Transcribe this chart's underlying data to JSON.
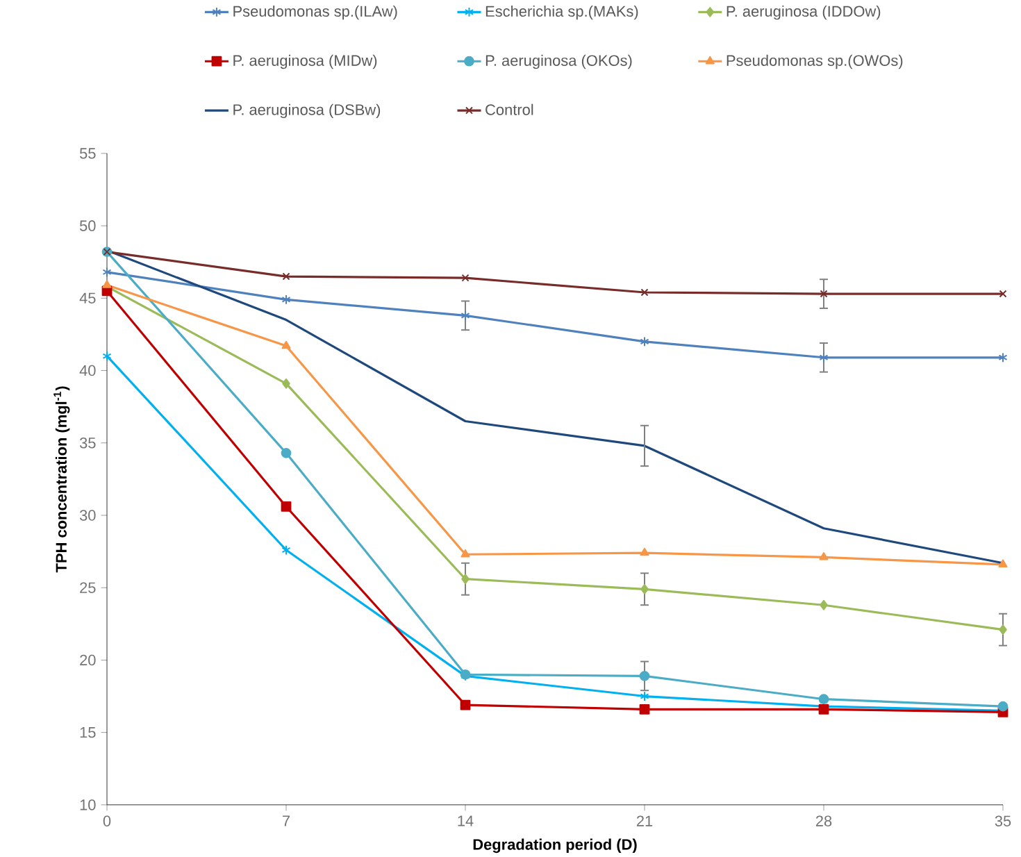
{
  "chart_data": {
    "type": "line",
    "xlabel": "Degradation period (D)",
    "ylabel": "TPH concentration (mgl$^{-1}$)",
    "x": [
      0,
      7,
      14,
      21,
      28,
      35
    ],
    "xlim": [
      0,
      35
    ],
    "xticks": [
      0,
      7,
      14,
      21,
      28,
      35
    ],
    "ylim": [
      10,
      55
    ],
    "yticks": [
      10,
      15,
      20,
      25,
      30,
      35,
      40,
      45,
      50,
      55
    ],
    "grid": false,
    "legend": "top",
    "series": [
      {
        "name": "Pseudomonas sp.(ILAw)",
        "color": "#4f81bd",
        "marker": "cross",
        "values": [
          46.8,
          44.9,
          43.8,
          42.0,
          40.9,
          40.9
        ],
        "errors": [
          null,
          null,
          1.0,
          null,
          1.0,
          null
        ]
      },
      {
        "name": "Escherichia sp.(MAKs)",
        "color": "#00b0f0",
        "marker": "cross",
        "values": [
          41.0,
          27.6,
          18.9,
          17.5,
          16.8,
          16.5
        ]
      },
      {
        "name": "P. aeruginosa (IDDOw)",
        "color": "#9bbb59",
        "marker": "diamond",
        "values": [
          45.8,
          39.1,
          25.6,
          24.9,
          23.8,
          22.1
        ],
        "errors": [
          null,
          null,
          1.1,
          1.1,
          null,
          1.1
        ]
      },
      {
        "name": "P. aeruginosa (MIDw)",
        "color": "#c00000",
        "marker": "square",
        "values": [
          45.5,
          30.6,
          16.9,
          16.6,
          16.6,
          16.4
        ]
      },
      {
        "name": "P. aeruginosa (OKOs)",
        "color": "#4bacc6",
        "marker": "circle",
        "values": [
          48.2,
          34.3,
          19.0,
          18.9,
          17.3,
          16.8
        ],
        "errors": [
          null,
          null,
          null,
          1.0,
          null,
          null
        ]
      },
      {
        "name": "Pseudomonas sp.(OWOs)",
        "color": "#f79646",
        "marker": "triangle",
        "values": [
          45.9,
          41.7,
          27.3,
          27.4,
          27.1,
          26.6
        ]
      },
      {
        "name": "P. aeruginosa (DSBw)",
        "color": "#1f497d",
        "marker": "none",
        "values": [
          48.3,
          43.5,
          36.5,
          34.8,
          29.1,
          26.7
        ],
        "errors": [
          null,
          null,
          null,
          1.4,
          null,
          null
        ]
      },
      {
        "name": "Control",
        "color": "#772c2a",
        "marker": "x",
        "values": [
          48.2,
          46.5,
          46.4,
          45.4,
          45.3,
          45.3
        ],
        "errors": [
          null,
          null,
          null,
          null,
          1.0,
          null
        ]
      }
    ]
  }
}
